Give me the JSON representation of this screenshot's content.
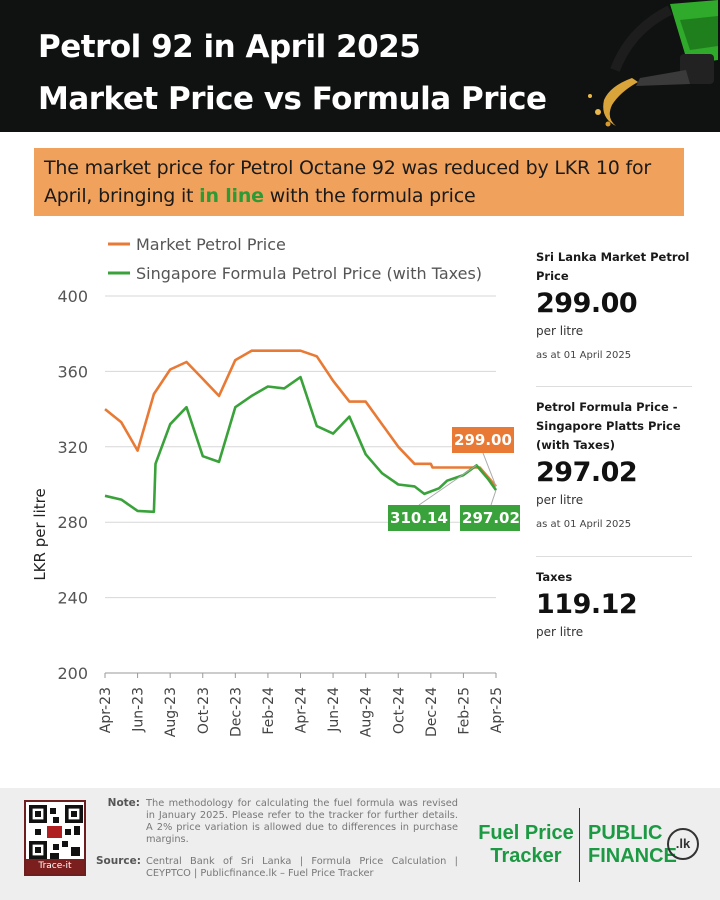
{
  "header": {
    "title_line1": "Petrol 92 in April 2025",
    "title_line2": "Market Price vs Formula Price",
    "image_icon": "fuel-nozzle-icon"
  },
  "banner": {
    "text_before": "The market price for Petrol Octane 92 was reduced by LKR 10 for April, bringing it ",
    "highlight": "in line",
    "text_after": " with the formula price",
    "highlight_color": "#2e9a35"
  },
  "chart_data": {
    "type": "line",
    "title": "",
    "xlabel": "",
    "ylabel": "LKR per litre",
    "ylim": [
      200,
      400
    ],
    "yticks": [
      200,
      240,
      280,
      320,
      360,
      400
    ],
    "x_range": [
      0,
      24
    ],
    "xtick_labels": [
      "Apr-23",
      "Jun-23",
      "Aug-23",
      "Oct-23",
      "Dec-23",
      "Feb-24",
      "Apr-24",
      "Jun-24",
      "Aug-24",
      "Oct-24",
      "Dec-24",
      "Feb-25",
      "Apr-25"
    ],
    "xtick_positions": [
      0,
      2,
      4,
      6,
      8,
      10,
      12,
      14,
      16,
      18,
      20,
      22,
      24
    ],
    "grid": "horizontal",
    "legend_position": "top-left",
    "series": [
      {
        "name": "Market Petrol Price",
        "color": "#e87a35",
        "points": [
          [
            0,
            340
          ],
          [
            1,
            333
          ],
          [
            2,
            318
          ],
          [
            3,
            348
          ],
          [
            4,
            361
          ],
          [
            5,
            365
          ],
          [
            6,
            356
          ],
          [
            7,
            347
          ],
          [
            8,
            366
          ],
          [
            9,
            371
          ],
          [
            10,
            371
          ],
          [
            11,
            371
          ],
          [
            12,
            371
          ],
          [
            13,
            368
          ],
          [
            14,
            355
          ],
          [
            15,
            344
          ],
          [
            16,
            344
          ],
          [
            17,
            332
          ],
          [
            18,
            320
          ],
          [
            19,
            311
          ],
          [
            20,
            311
          ],
          [
            20.1,
            309
          ],
          [
            23,
            309
          ],
          [
            24,
            299
          ]
        ]
      },
      {
        "name": "Singapore Formula Petrol Price (with Taxes)",
        "color": "#3aa23a",
        "points": [
          [
            0,
            294
          ],
          [
            1,
            292
          ],
          [
            2,
            286
          ],
          [
            3,
            285.5
          ],
          [
            3.1,
            311
          ],
          [
            4,
            332
          ],
          [
            5,
            341
          ],
          [
            6,
            315
          ],
          [
            7,
            312
          ],
          [
            8,
            341
          ],
          [
            9,
            347
          ],
          [
            10,
            352
          ],
          [
            11,
            351
          ],
          [
            12,
            357
          ],
          [
            13,
            331
          ],
          [
            14,
            327
          ],
          [
            15,
            336
          ],
          [
            16,
            316
          ],
          [
            17,
            306
          ],
          [
            18,
            300
          ],
          [
            19,
            299
          ],
          [
            19.6,
            295
          ],
          [
            20.5,
            298
          ],
          [
            21,
            302
          ],
          [
            22,
            305
          ],
          [
            22.8,
            310.14
          ],
          [
            23.5,
            303
          ],
          [
            24,
            297.02
          ]
        ]
      }
    ],
    "annotations": [
      {
        "label": "299.00",
        "x": 24,
        "y": 299,
        "color": "#e87a35"
      },
      {
        "label": "310.14",
        "x": 22.8,
        "y": 310.14,
        "color": "#3aa23a"
      },
      {
        "label": "297.02",
        "x": 24,
        "y": 297.02,
        "color": "#3aa23a"
      }
    ]
  },
  "side": {
    "market": {
      "label": "Sri Lanka Market Petrol Price",
      "value": "299.00",
      "unit": "per litre",
      "date": "as at 01 April 2025"
    },
    "formula": {
      "label": "Petrol Formula Price - Singapore Platts Price (with Taxes)",
      "value": "297.02",
      "unit": "per litre",
      "date": "as at 01 April 2025"
    },
    "taxes": {
      "label": "Taxes",
      "value": "119.12",
      "unit": "per litre"
    }
  },
  "footer": {
    "qr_caption": "Trace-it",
    "note_label": "Note:",
    "note_text": "The methodology for calculating the fuel formula was revised in January 2025. Please refer to the tracker for further details. A 2% price variation is allowed due to differences in purchase margins.",
    "source_label": "Source:",
    "source_text": "Central Bank of Sri Lanka | Formula Price Calculation | CEYPTCO | Publicfinance.lk – Fuel Price Tracker",
    "brand_ft_line1": "Fuel Price",
    "brand_ft_line2": "Tracker",
    "brand_pf_line1": "PUBLIC",
    "brand_pf_line2": "FINANCE",
    "brand_lk": ".lk"
  }
}
